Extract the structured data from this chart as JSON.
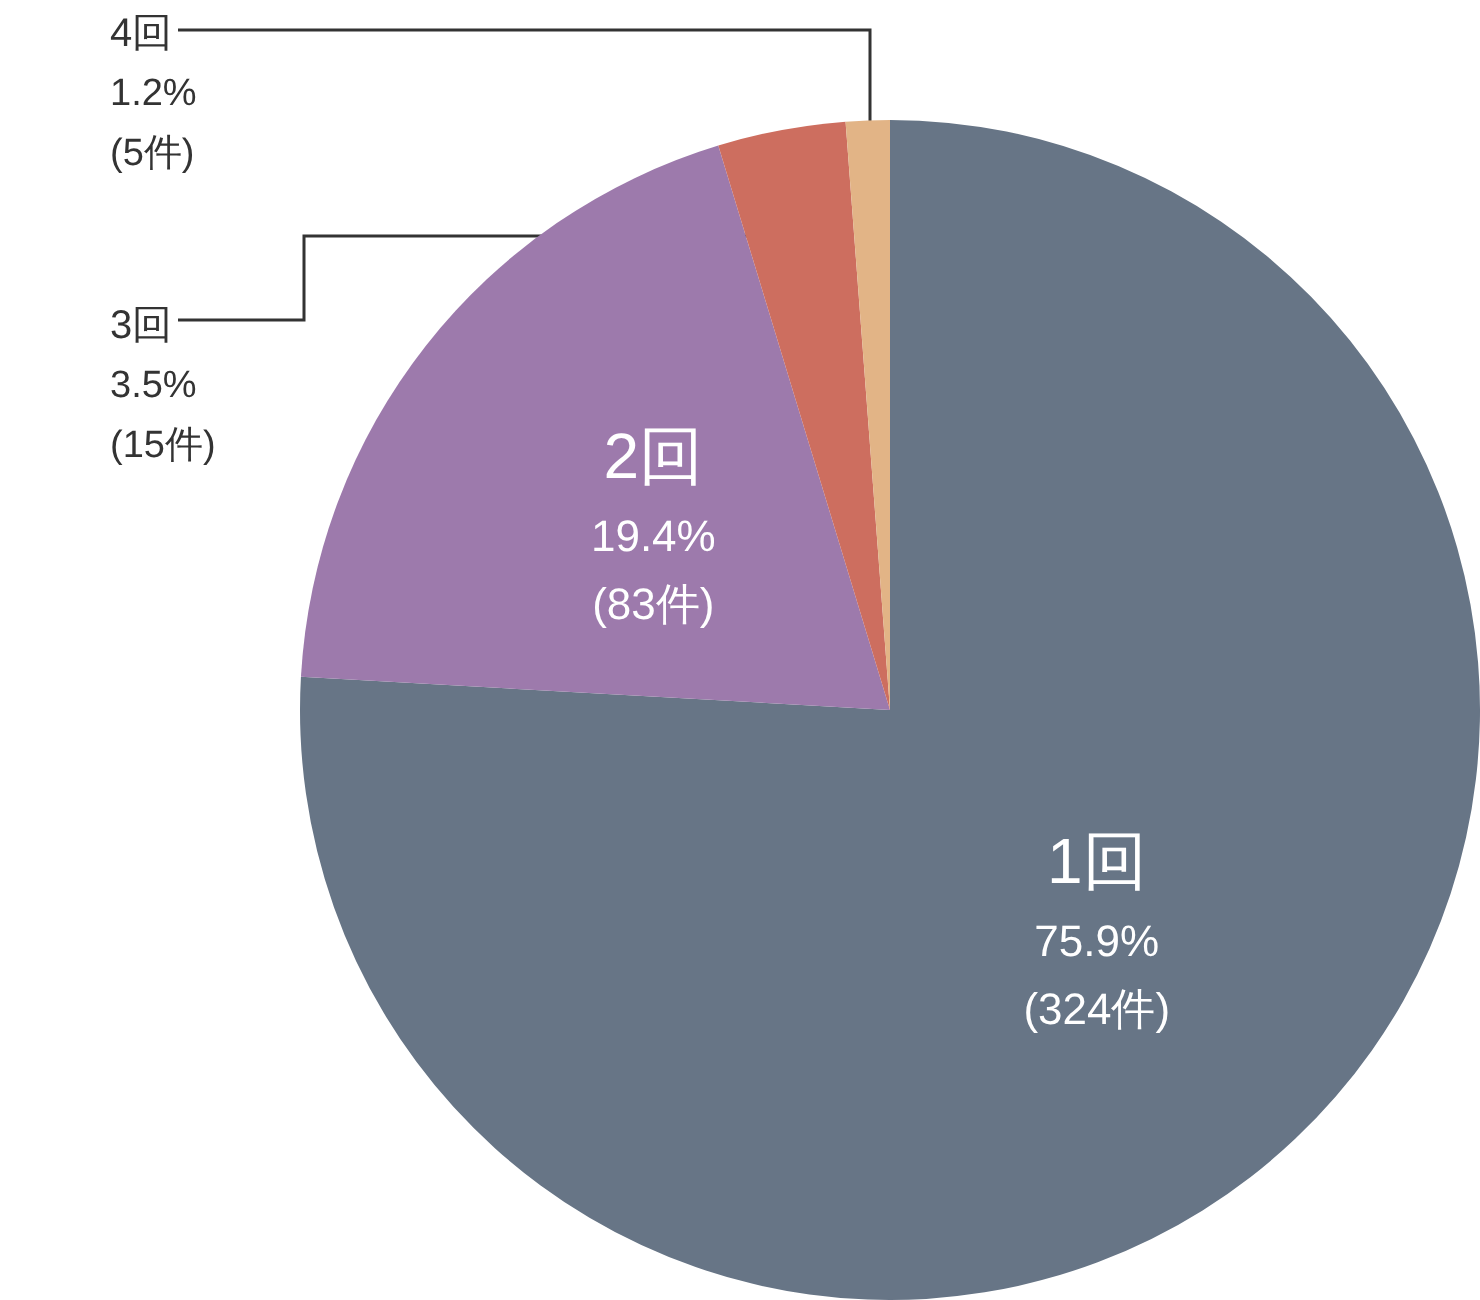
{
  "chart_data": {
    "type": "pie",
    "categories": [
      "1回",
      "2回",
      "3回",
      "4回"
    ],
    "values": [
      75.9,
      19.4,
      3.5,
      1.2
    ],
    "colors": [
      "#677586",
      "#9d7aac",
      "#cd6e5f",
      "#e2b486"
    ],
    "value_labels": [
      "75.9%\n(324件)",
      "19.4%\n(83件)",
      "3.5%\n(15件)",
      "1.2%\n(5件)"
    ],
    "legend": false
  }
}
